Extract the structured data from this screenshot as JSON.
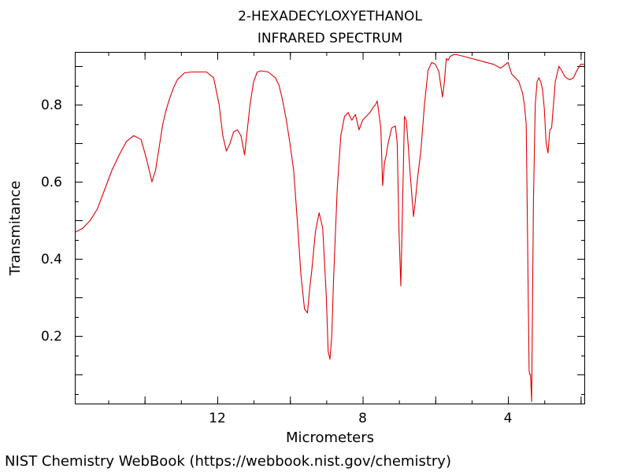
{
  "footer": "NIST Chemistry WebBook (https://webbook.nist.gov/chemistry)",
  "chart_data": {
    "type": "line",
    "title": "2-HEXADECYLOXYETHANOL",
    "subtitle": "INFRARED SPECTRUM",
    "xlabel": "Micrometers",
    "ylabel": "Transmitance",
    "xlim": [
      15.9,
      1.9
    ],
    "ylim": [
      0.025,
      0.935
    ],
    "x_ticks": [
      12,
      8,
      4
    ],
    "y_ticks": [
      0.2,
      0.4,
      0.6,
      0.8
    ],
    "grid": false,
    "line_color": "#e00000",
    "series": [
      {
        "x": [
          15.9,
          15.7,
          15.5,
          15.3,
          15.1,
          14.9,
          14.7,
          14.5,
          14.3,
          14.1,
          13.95,
          13.8,
          13.7,
          13.6,
          13.5,
          13.4,
          13.3,
          13.2,
          13.1,
          12.9,
          12.7,
          12.5,
          12.3,
          12.1,
          11.95,
          11.85,
          11.75,
          11.65,
          11.55,
          11.45,
          11.35,
          11.25,
          11.1,
          11.0,
          10.9,
          10.8,
          10.6,
          10.4,
          10.3,
          10.2,
          10.1,
          10.0,
          9.9,
          9.8,
          9.7,
          9.6,
          9.52,
          9.45,
          9.4,
          9.3,
          9.2,
          9.1,
          9.0,
          8.95,
          8.9,
          8.85,
          8.8,
          8.7,
          8.6,
          8.5,
          8.4,
          8.3,
          8.2,
          8.1,
          8.0,
          7.9,
          7.8,
          7.7,
          7.65,
          7.6,
          7.5,
          7.45,
          7.4,
          7.35,
          7.3,
          7.2,
          7.1,
          7.05,
          7.0,
          6.95,
          6.9,
          6.85,
          6.8,
          6.75,
          6.7,
          6.65,
          6.6,
          6.55,
          6.5,
          6.4,
          6.3,
          6.2,
          6.1,
          6.0,
          5.9,
          5.85,
          5.8,
          5.75,
          5.7,
          5.65,
          5.6,
          5.5,
          5.4,
          5.2,
          5.0,
          4.8,
          4.6,
          4.4,
          4.2,
          4.0,
          3.9,
          3.8,
          3.7,
          3.6,
          3.55,
          3.5,
          3.48,
          3.45,
          3.42,
          3.4,
          3.38,
          3.35,
          3.3,
          3.25,
          3.2,
          3.15,
          3.1,
          3.05,
          3.0,
          2.95,
          2.9,
          2.85,
          2.8,
          2.7,
          2.6,
          2.5,
          2.45,
          2.4,
          2.3,
          2.2,
          2.1,
          2.0,
          1.9
        ],
        "y": [
          0.47,
          0.48,
          0.5,
          0.53,
          0.58,
          0.63,
          0.67,
          0.705,
          0.72,
          0.71,
          0.66,
          0.6,
          0.63,
          0.69,
          0.75,
          0.79,
          0.82,
          0.845,
          0.865,
          0.883,
          0.885,
          0.885,
          0.885,
          0.87,
          0.8,
          0.72,
          0.68,
          0.7,
          0.73,
          0.735,
          0.72,
          0.67,
          0.8,
          0.86,
          0.885,
          0.888,
          0.885,
          0.87,
          0.85,
          0.81,
          0.76,
          0.7,
          0.63,
          0.5,
          0.36,
          0.27,
          0.26,
          0.33,
          0.37,
          0.47,
          0.52,
          0.48,
          0.3,
          0.16,
          0.14,
          0.2,
          0.35,
          0.58,
          0.72,
          0.77,
          0.78,
          0.76,
          0.775,
          0.735,
          0.76,
          0.77,
          0.78,
          0.795,
          0.8,
          0.81,
          0.74,
          0.59,
          0.65,
          0.67,
          0.7,
          0.74,
          0.745,
          0.7,
          0.47,
          0.33,
          0.55,
          0.77,
          0.76,
          0.7,
          0.63,
          0.57,
          0.51,
          0.55,
          0.6,
          0.68,
          0.8,
          0.89,
          0.91,
          0.905,
          0.885,
          0.85,
          0.82,
          0.86,
          0.92,
          0.915,
          0.925,
          0.93,
          0.93,
          0.925,
          0.92,
          0.915,
          0.91,
          0.905,
          0.895,
          0.91,
          0.88,
          0.87,
          0.86,
          0.83,
          0.8,
          0.75,
          0.6,
          0.35,
          0.11,
          0.1,
          0.1,
          0.03,
          0.55,
          0.8,
          0.86,
          0.87,
          0.86,
          0.84,
          0.79,
          0.7,
          0.675,
          0.735,
          0.74,
          0.86,
          0.9,
          0.885,
          0.875,
          0.87,
          0.865,
          0.87,
          0.89,
          0.905,
          0.905
        ]
      }
    ]
  }
}
